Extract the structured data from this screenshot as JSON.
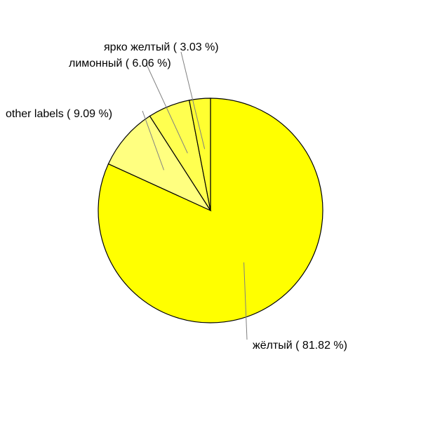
{
  "chart_data": {
    "type": "pie",
    "start_angle_deg": 0,
    "direction": "clockwise",
    "stroke": "#000000",
    "leader_color": "#808080",
    "slices": [
      {
        "name": "жёлтый",
        "value": 81.82,
        "label": "жёлтый ( 81.82 %)",
        "color": "#ffff00"
      },
      {
        "name": "other labels",
        "value": 9.09,
        "label": "other labels ( 9.09 %)",
        "color": "#ffff80"
      },
      {
        "name": "лимонный",
        "value": 6.06,
        "label": "лимонный ( 6.06 %)",
        "color": "#ffff50"
      },
      {
        "name": "ярко желтый",
        "value": 3.03,
        "label": "ярко желтый ( 3.03 %)",
        "color": "#ffff30"
      }
    ]
  }
}
